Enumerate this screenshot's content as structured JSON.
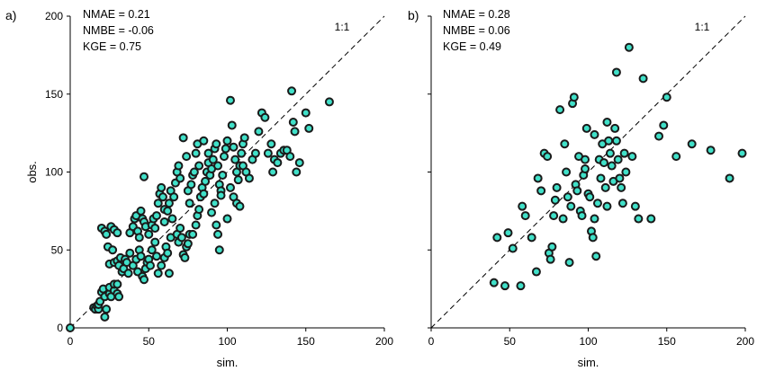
{
  "chart_data": [
    {
      "type": "scatter",
      "panel_label": "a)",
      "xlabel": "sim.",
      "ylabel": "obs.",
      "xlim": [
        0,
        200
      ],
      "ylim": [
        0,
        200
      ],
      "xticks": [
        "0",
        "50",
        "100",
        "150",
        "200"
      ],
      "yticks": [
        "0",
        "50",
        "100",
        "150",
        "200"
      ],
      "stats": [
        "NMAE = 0.21",
        "NMBE = -0.06",
        "KGE = 0.75"
      ],
      "reference_line_label": "1:1",
      "marker_color": "#40e0c8",
      "marker_edge_color": "#1a1a1a",
      "points": [
        [
          0,
          0
        ],
        [
          15,
          13
        ],
        [
          16,
          12
        ],
        [
          17,
          14
        ],
        [
          18,
          12
        ],
        [
          18,
          15
        ],
        [
          19,
          17
        ],
        [
          20,
          23
        ],
        [
          21,
          25
        ],
        [
          22,
          7
        ],
        [
          22,
          20
        ],
        [
          23,
          12
        ],
        [
          25,
          22
        ],
        [
          25,
          26
        ],
        [
          26,
          20
        ],
        [
          28,
          24
        ],
        [
          28,
          28
        ],
        [
          30,
          22
        ],
        [
          30,
          28
        ],
        [
          31,
          20
        ],
        [
          20,
          64
        ],
        [
          22,
          62
        ],
        [
          23,
          60
        ],
        [
          26,
          65
        ],
        [
          28,
          63
        ],
        [
          30,
          61
        ],
        [
          24,
          52
        ],
        [
          27,
          50
        ],
        [
          25,
          41
        ],
        [
          28,
          42
        ],
        [
          30,
          43
        ],
        [
          31,
          40
        ],
        [
          32,
          45
        ],
        [
          33,
          36
        ],
        [
          34,
          38
        ],
        [
          35,
          44
        ],
        [
          36,
          42
        ],
        [
          37,
          35
        ],
        [
          38,
          48
        ],
        [
          40,
          40
        ],
        [
          38,
          61
        ],
        [
          40,
          65
        ],
        [
          41,
          70
        ],
        [
          42,
          72
        ],
        [
          43,
          62
        ],
        [
          44,
          58
        ],
        [
          45,
          75
        ],
        [
          46,
          70
        ],
        [
          47,
          68
        ],
        [
          48,
          65
        ],
        [
          42,
          44
        ],
        [
          43,
          36
        ],
        [
          44,
          50
        ],
        [
          45,
          46
        ],
        [
          46,
          33
        ],
        [
          47,
          31
        ],
        [
          48,
          38
        ],
        [
          49,
          42
        ],
        [
          50,
          44
        ],
        [
          51,
          40
        ],
        [
          50,
          60
        ],
        [
          52,
          66
        ],
        [
          53,
          70
        ],
        [
          54,
          64
        ],
        [
          55,
          72
        ],
        [
          56,
          80
        ],
        [
          57,
          86
        ],
        [
          58,
          90
        ],
        [
          59,
          84
        ],
        [
          60,
          76
        ],
        [
          52,
          50
        ],
        [
          54,
          55
        ],
        [
          55,
          46
        ],
        [
          56,
          35
        ],
        [
          58,
          40
        ],
        [
          60,
          45
        ],
        [
          61,
          52
        ],
        [
          62,
          48
        ],
        [
          63,
          35
        ],
        [
          64,
          58
        ],
        [
          47,
          97
        ],
        [
          60,
          68
        ],
        [
          62,
          75
        ],
        [
          63,
          80
        ],
        [
          64,
          88
        ],
        [
          65,
          70
        ],
        [
          66,
          84
        ],
        [
          67,
          93
        ],
        [
          68,
          100
        ],
        [
          69,
          104
        ],
        [
          70,
          96
        ],
        [
          68,
          60
        ],
        [
          69,
          55
        ],
        [
          70,
          64
        ],
        [
          71,
          58
        ],
        [
          72,
          47
        ],
        [
          73,
          45
        ],
        [
          74,
          52
        ],
        [
          75,
          54
        ],
        [
          76,
          60
        ],
        [
          72,
          122
        ],
        [
          74,
          110
        ],
        [
          75,
          88
        ],
        [
          76,
          80
        ],
        [
          77,
          92
        ],
        [
          78,
          98
        ],
        [
          79,
          100
        ],
        [
          80,
          112
        ],
        [
          81,
          118
        ],
        [
          82,
          104
        ],
        [
          78,
          60
        ],
        [
          80,
          66
        ],
        [
          81,
          72
        ],
        [
          82,
          76
        ],
        [
          83,
          84
        ],
        [
          84,
          90
        ],
        [
          85,
          86
        ],
        [
          86,
          94
        ],
        [
          87,
          100
        ],
        [
          88,
          106
        ],
        [
          85,
          120
        ],
        [
          88,
          112
        ],
        [
          89,
          98
        ],
        [
          90,
          102
        ],
        [
          91,
          108
        ],
        [
          92,
          115
        ],
        [
          93,
          118
        ],
        [
          94,
          104
        ],
        [
          95,
          92
        ],
        [
          96,
          88
        ],
        [
          90,
          74
        ],
        [
          92,
          80
        ],
        [
          93,
          66
        ],
        [
          94,
          60
        ],
        [
          95,
          50
        ],
        [
          96,
          85
        ],
        [
          97,
          98
        ],
        [
          98,
          110
        ],
        [
          99,
          115
        ],
        [
          100,
          120
        ],
        [
          102,
          146
        ],
        [
          103,
          130
        ],
        [
          104,
          116
        ],
        [
          105,
          108
        ],
        [
          106,
          100
        ],
        [
          107,
          95
        ],
        [
          108,
          104
        ],
        [
          109,
          112
        ],
        [
          110,
          118
        ],
        [
          111,
          122
        ],
        [
          100,
          70
        ],
        [
          102,
          90
        ],
        [
          104,
          84
        ],
        [
          106,
          80
        ],
        [
          108,
          78
        ],
        [
          110,
          104
        ],
        [
          112,
          100
        ],
        [
          114,
          96
        ],
        [
          116,
          108
        ],
        [
          118,
          112
        ],
        [
          120,
          126
        ],
        [
          122,
          138
        ],
        [
          124,
          135
        ],
        [
          126,
          112
        ],
        [
          128,
          118
        ],
        [
          129,
          100
        ],
        [
          130,
          108
        ],
        [
          132,
          106
        ],
        [
          134,
          112
        ],
        [
          136,
          114
        ],
        [
          138,
          114
        ],
        [
          140,
          110
        ],
        [
          141,
          152
        ],
        [
          142,
          132
        ],
        [
          143,
          126
        ],
        [
          144,
          100
        ],
        [
          146,
          106
        ],
        [
          150,
          138
        ],
        [
          152,
          128
        ],
        [
          165,
          145
        ]
      ]
    },
    {
      "type": "scatter",
      "panel_label": "b)",
      "xlabel": "sim.",
      "ylabel": "",
      "xlim": [
        0,
        200
      ],
      "ylim": [
        0,
        200
      ],
      "xticks": [
        "0",
        "50",
        "100",
        "150",
        "200"
      ],
      "yticks": [],
      "stats": [
        "NMAE = 0.28",
        "NMBE = 0.06",
        "KGE = 0.49"
      ],
      "reference_line_label": "1:1",
      "marker_color": "#40e0c8",
      "marker_edge_color": "#1a1a1a",
      "points": [
        [
          40,
          29
        ],
        [
          42,
          58
        ],
        [
          47,
          27
        ],
        [
          49,
          61
        ],
        [
          52,
          51
        ],
        [
          57,
          27
        ],
        [
          58,
          78
        ],
        [
          60,
          72
        ],
        [
          64,
          58
        ],
        [
          67,
          36
        ],
        [
          68,
          96
        ],
        [
          70,
          88
        ],
        [
          72,
          112
        ],
        [
          74,
          110
        ],
        [
          75,
          48
        ],
        [
          76,
          44
        ],
        [
          77,
          52
        ],
        [
          78,
          72
        ],
        [
          79,
          82
        ],
        [
          80,
          90
        ],
        [
          82,
          140
        ],
        [
          84,
          70
        ],
        [
          85,
          118
        ],
        [
          86,
          100
        ],
        [
          87,
          84
        ],
        [
          88,
          42
        ],
        [
          89,
          78
        ],
        [
          90,
          144
        ],
        [
          91,
          148
        ],
        [
          92,
          92
        ],
        [
          93,
          88
        ],
        [
          94,
          110
        ],
        [
          95,
          75
        ],
        [
          96,
          72
        ],
        [
          97,
          98
        ],
        [
          98,
          102
        ],
        [
          99,
          128
        ],
        [
          100,
          86
        ],
        [
          101,
          84
        ],
        [
          102,
          62
        ],
        [
          103,
          58
        ],
        [
          104,
          70
        ],
        [
          105,
          46
        ],
        [
          106,
          80
        ],
        [
          107,
          108
        ],
        [
          108,
          96
        ],
        [
          109,
          118
        ],
        [
          110,
          106
        ],
        [
          111,
          90
        ],
        [
          112,
          78
        ],
        [
          113,
          120
        ],
        [
          114,
          112
        ],
        [
          115,
          104
        ],
        [
          116,
          94
        ],
        [
          117,
          128
        ],
        [
          118,
          120
        ],
        [
          119,
          108
        ],
        [
          120,
          96
        ],
        [
          121,
          90
        ],
        [
          122,
          80
        ],
        [
          123,
          112
        ],
        [
          124,
          100
        ],
        [
          126,
          180
        ],
        [
          128,
          110
        ],
        [
          130,
          78
        ],
        [
          132,
          70
        ],
        [
          135,
          160
        ],
        [
          140,
          70
        ],
        [
          145,
          123
        ],
        [
          148,
          130
        ],
        [
          150,
          148
        ],
        [
          156,
          110
        ],
        [
          166,
          118
        ],
        [
          178,
          114
        ],
        [
          190,
          96
        ],
        [
          198,
          112
        ],
        [
          118,
          164
        ],
        [
          112,
          132
        ],
        [
          104,
          124
        ],
        [
          98,
          108
        ]
      ]
    }
  ]
}
